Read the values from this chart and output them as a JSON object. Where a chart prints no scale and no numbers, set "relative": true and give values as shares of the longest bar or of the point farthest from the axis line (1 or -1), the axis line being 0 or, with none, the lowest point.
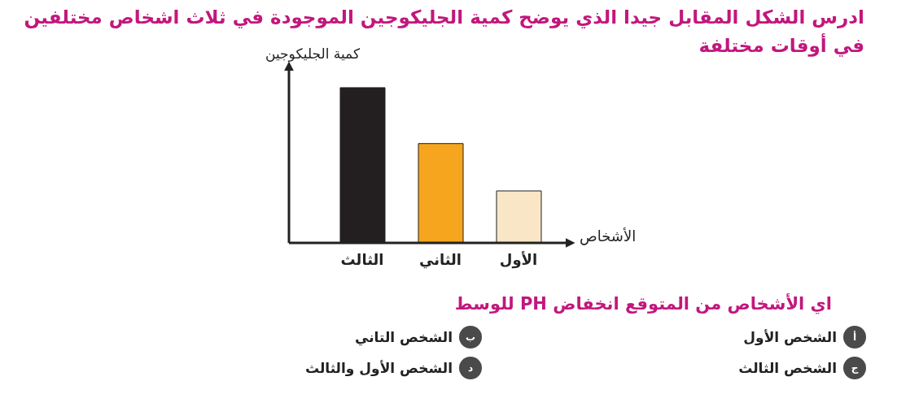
{
  "chart_data": {
    "type": "bar",
    "title": "ادرس الشكل المقابل جيدا الذي يوضح كمية الجليكوجين الموجودة في ثلاث اشخاص مختلفين في أوقات مختلفة",
    "ylabel": "كمية الجليكوجين",
    "xlabel": "الأشخاص",
    "categories": [
      "الثالث",
      "الثاني",
      "الأول"
    ],
    "values": [
      1,
      0.64,
      0.335
    ],
    "colors": [
      "#231f20",
      "#f5a51e",
      "#f8e6c6"
    ],
    "relative": true,
    "annotations": [
      "اي الأشخاص من المتوقع انخفاض PH للوسط",
      "أ",
      "الشخص الأول",
      "ب",
      "الشخص التاني",
      "ج",
      "الشخص الثالث",
      "د",
      "الشخص الأول والثالث"
    ]
  }
}
